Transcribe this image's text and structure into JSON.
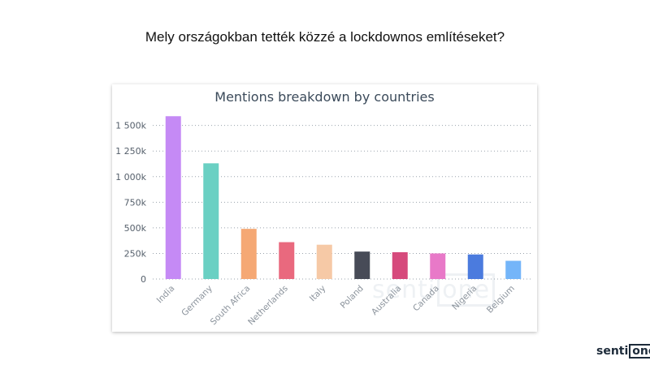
{
  "slide": {
    "title": "Mely országokban tették közzé a lockdownos említéseket?"
  },
  "watermark": {
    "prefix": "senti",
    "boxed": "one"
  },
  "brand": {
    "prefix": "senti",
    "boxed": "one"
  },
  "chart_data": {
    "type": "bar",
    "title": "Mentions breakdown by countries",
    "xlabel": "",
    "ylabel": "",
    "categories": [
      "India",
      "Germany",
      "South Africa",
      "Netherlands",
      "Italy",
      "Poland",
      "Australia",
      "Canada",
      "Nigeria",
      "Belgium"
    ],
    "values": [
      1590000,
      1130000,
      490000,
      360000,
      335000,
      268000,
      262000,
      250000,
      240000,
      178000
    ],
    "colors": [
      "#c58af5",
      "#6ad0c3",
      "#f5a874",
      "#e9697e",
      "#f6c9a6",
      "#474b57",
      "#d64a7c",
      "#e879c8",
      "#4b7bde",
      "#74b5f9"
    ],
    "ylim": [
      0,
      1600000
    ],
    "yticks": [
      0,
      250000,
      500000,
      750000,
      1000000,
      1250000,
      1500000
    ],
    "ytick_labels": [
      "0",
      "250k",
      "500k",
      "750k",
      "1 000k",
      "1 250k",
      "1 500k"
    ],
    "grid": true,
    "grid_style": "dotted"
  }
}
